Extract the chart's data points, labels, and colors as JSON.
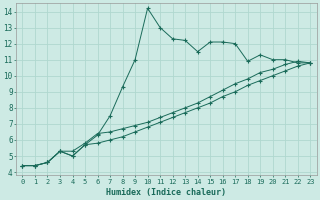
{
  "xlabel": "Humidex (Indice chaleur)",
  "xlim": [
    -0.5,
    23.5
  ],
  "ylim": [
    3.8,
    14.5
  ],
  "xticks": [
    0,
    1,
    2,
    3,
    4,
    5,
    6,
    7,
    8,
    9,
    10,
    11,
    12,
    13,
    14,
    15,
    16,
    17,
    18,
    19,
    20,
    21,
    22,
    23
  ],
  "yticks": [
    4,
    5,
    6,
    7,
    8,
    9,
    10,
    11,
    12,
    13,
    14
  ],
  "bg_color": "#cdeae4",
  "grid_color": "#b0d8cf",
  "line_color": "#1a6b5a",
  "line1_x": [
    0,
    1,
    2,
    3,
    4,
    5,
    6,
    7,
    8,
    9,
    10,
    11,
    12,
    13,
    14,
    15,
    16,
    17,
    18,
    19,
    20,
    21,
    22,
    23
  ],
  "line1_y": [
    4.4,
    4.4,
    4.6,
    5.3,
    5.0,
    5.7,
    6.3,
    7.5,
    9.3,
    11.0,
    14.2,
    13.0,
    12.3,
    12.2,
    11.5,
    12.1,
    12.1,
    12.0,
    10.9,
    11.3,
    11.0,
    11.0,
    10.8,
    10.8
  ],
  "line2_x": [
    0,
    1,
    2,
    3,
    4,
    5,
    6,
    7,
    8,
    9,
    10,
    11,
    12,
    13,
    14,
    15,
    16,
    17,
    18,
    19,
    20,
    21,
    22,
    23
  ],
  "line2_y": [
    4.4,
    4.4,
    4.6,
    5.3,
    5.3,
    5.8,
    6.4,
    6.5,
    6.7,
    6.9,
    7.1,
    7.4,
    7.7,
    8.0,
    8.3,
    8.7,
    9.1,
    9.5,
    9.8,
    10.2,
    10.4,
    10.7,
    10.9,
    10.8
  ],
  "line3_x": [
    0,
    1,
    2,
    3,
    4,
    5,
    6,
    7,
    8,
    9,
    10,
    11,
    12,
    13,
    14,
    15,
    16,
    17,
    18,
    19,
    20,
    21,
    22,
    23
  ],
  "line3_y": [
    4.4,
    4.4,
    4.6,
    5.3,
    5.0,
    5.7,
    5.8,
    6.0,
    6.2,
    6.5,
    6.8,
    7.1,
    7.4,
    7.7,
    8.0,
    8.3,
    8.7,
    9.0,
    9.4,
    9.7,
    10.0,
    10.3,
    10.6,
    10.8
  ]
}
